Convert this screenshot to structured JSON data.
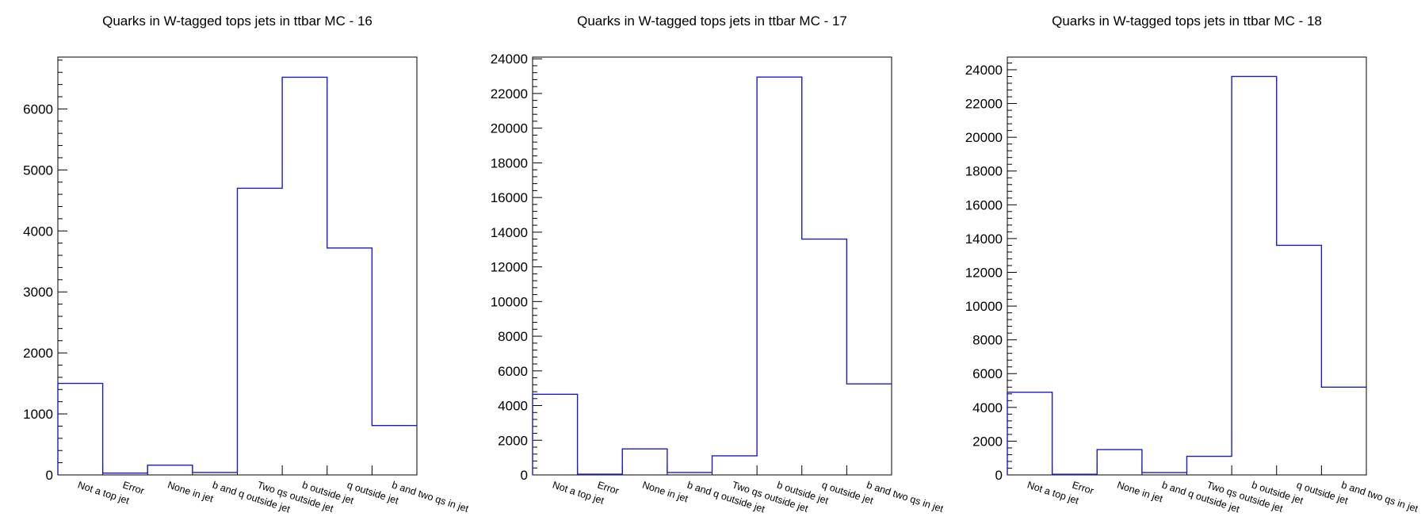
{
  "chart_data": [
    {
      "type": "bar",
      "style": "step-histogram",
      "title": "Quarks in W-tagged tops jets in ttbar MC - 16",
      "xlabel": "",
      "ylabel": "",
      "categories": [
        "Not a top jet",
        "Error",
        "None in jet",
        "b and q outside jet",
        "Two qs outside jet",
        "b outside jet",
        "q outside jet",
        "b and two qs in jet"
      ],
      "values": [
        1500,
        30,
        160,
        40,
        4700,
        6520,
        3720,
        810
      ],
      "ylim": [
        0,
        6850
      ],
      "yticks": [
        0,
        1000,
        2000,
        3000,
        4000,
        5000,
        6000
      ],
      "color": "#1a1acc"
    },
    {
      "type": "bar",
      "style": "step-histogram",
      "title": "Quarks in W-tagged tops jets in ttbar MC - 17",
      "xlabel": "",
      "ylabel": "",
      "categories": [
        "Not a top jet",
        "Error",
        "None in jet",
        "b and q outside jet",
        "Two qs outside jet",
        "b outside jet",
        "q outside jet",
        "b and two qs in jet"
      ],
      "values": [
        4650,
        40,
        1500,
        140,
        1100,
        22950,
        13600,
        5250
      ],
      "ylim": [
        0,
        24100
      ],
      "yticks": [
        0,
        2000,
        4000,
        6000,
        8000,
        10000,
        12000,
        14000,
        16000,
        18000,
        20000,
        22000,
        24000
      ],
      "color": "#1a1acc"
    },
    {
      "type": "bar",
      "style": "step-histogram",
      "title": "Quarks in W-tagged tops jets in ttbar MC - 18",
      "xlabel": "",
      "ylabel": "",
      "categories": [
        "Not a top jet",
        "Error",
        "None in jet",
        "b and q outside jet",
        "Two qs outside jet",
        "b outside jet",
        "q outside jet",
        "b and two qs in jet"
      ],
      "values": [
        4900,
        40,
        1500,
        140,
        1100,
        23600,
        13600,
        5200
      ],
      "ylim": [
        0,
        24750
      ],
      "yticks": [
        0,
        2000,
        4000,
        6000,
        8000,
        10000,
        12000,
        14000,
        16000,
        18000,
        20000,
        22000,
        24000
      ],
      "color": "#1a1acc"
    }
  ]
}
